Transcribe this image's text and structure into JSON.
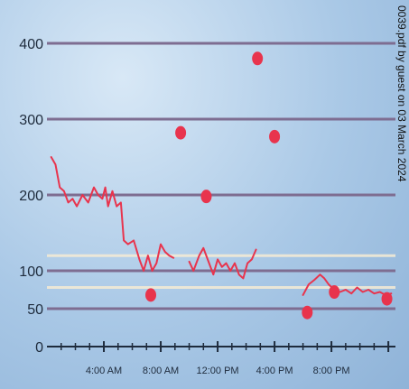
{
  "side_note": "0039.pdf by guest on 03 March 2024",
  "chart_data": {
    "type": "line",
    "title": "",
    "xlabel": "",
    "ylabel": "",
    "y_tick_labels": [
      {
        "value": 400,
        "label": "400"
      },
      {
        "value": 300,
        "label": "300"
      },
      {
        "value": 200,
        "label": "200"
      },
      {
        "value": 100,
        "label": "100"
      },
      {
        "value": 50,
        "label": "50"
      },
      {
        "value": 0,
        "label": "0"
      }
    ],
    "x_tick_labels": [
      {
        "hour": 4,
        "label": "4:00 AM"
      },
      {
        "hour": 8,
        "label": "8:00 AM"
      },
      {
        "hour": 12,
        "label": "12:00 PM"
      },
      {
        "hour": 16,
        "label": "4:00 PM"
      },
      {
        "hour": 20,
        "label": "8:00 PM"
      }
    ],
    "xlim_hours": [
      0,
      24.5
    ],
    "ylim": [
      0,
      420
    ],
    "grid_y_values": [
      400,
      300,
      200,
      100,
      50
    ],
    "target_band": [
      120,
      78
    ],
    "colors": {
      "line": "#e8344d",
      "dots": "#e8344d",
      "grid": "#7e6d91",
      "band": "#f6ecd5",
      "axis": "#1e2b3c"
    },
    "series": [
      {
        "segments": [
          [
            [
              0.3,
              250
            ],
            [
              0.6,
              240
            ],
            [
              0.9,
              210
            ],
            [
              1.2,
              205
            ],
            [
              1.5,
              190
            ],
            [
              1.8,
              195
            ],
            [
              2.1,
              185
            ],
            [
              2.5,
              200
            ],
            [
              2.9,
              190
            ],
            [
              3.3,
              210
            ],
            [
              3.6,
              200
            ],
            [
              3.9,
              195
            ],
            [
              4.1,
              210
            ],
            [
              4.3,
              185
            ],
            [
              4.6,
              205
            ],
            [
              4.9,
              185
            ],
            [
              5.2,
              190
            ],
            [
              5.4,
              140
            ],
            [
              5.7,
              135
            ],
            [
              6.1,
              140
            ],
            [
              6.5,
              115
            ],
            [
              6.8,
              100
            ],
            [
              7.1,
              120
            ],
            [
              7.4,
              100
            ],
            [
              7.7,
              110
            ],
            [
              8.0,
              135
            ],
            [
              8.3,
              125
            ],
            [
              8.6,
              120
            ],
            [
              8.9,
              117
            ]
          ],
          [
            [
              10.0,
              112
            ],
            [
              10.3,
              100
            ],
            [
              10.7,
              120
            ],
            [
              11.0,
              130
            ],
            [
              11.4,
              110
            ],
            [
              11.7,
              95
            ],
            [
              12.0,
              115
            ],
            [
              12.3,
              105
            ],
            [
              12.6,
              110
            ],
            [
              12.9,
              100
            ],
            [
              13.2,
              110
            ],
            [
              13.5,
              95
            ],
            [
              13.8,
              90
            ],
            [
              14.1,
              110
            ],
            [
              14.4,
              115
            ],
            [
              14.7,
              128
            ]
          ],
          [
            [
              18.0,
              68
            ],
            [
              18.4,
              82
            ],
            [
              18.8,
              88
            ],
            [
              19.2,
              95
            ],
            [
              19.5,
              90
            ],
            [
              19.8,
              82
            ],
            [
              20.2,
              75
            ],
            [
              20.6,
              72
            ],
            [
              21.0,
              75
            ],
            [
              21.4,
              70
            ],
            [
              21.8,
              78
            ],
            [
              22.2,
              72
            ],
            [
              22.6,
              75
            ],
            [
              23.0,
              70
            ],
            [
              23.4,
              72
            ],
            [
              23.8,
              68
            ],
            [
              24.2,
              70
            ]
          ]
        ]
      }
    ],
    "points": [
      {
        "hour": 7.3,
        "value": 68
      },
      {
        "hour": 9.4,
        "value": 282
      },
      {
        "hour": 11.2,
        "value": 198
      },
      {
        "hour": 14.8,
        "value": 380
      },
      {
        "hour": 16.0,
        "value": 277
      },
      {
        "hour": 18.3,
        "value": 45
      },
      {
        "hour": 20.2,
        "value": 72
      },
      {
        "hour": 23.9,
        "value": 63
      }
    ]
  }
}
